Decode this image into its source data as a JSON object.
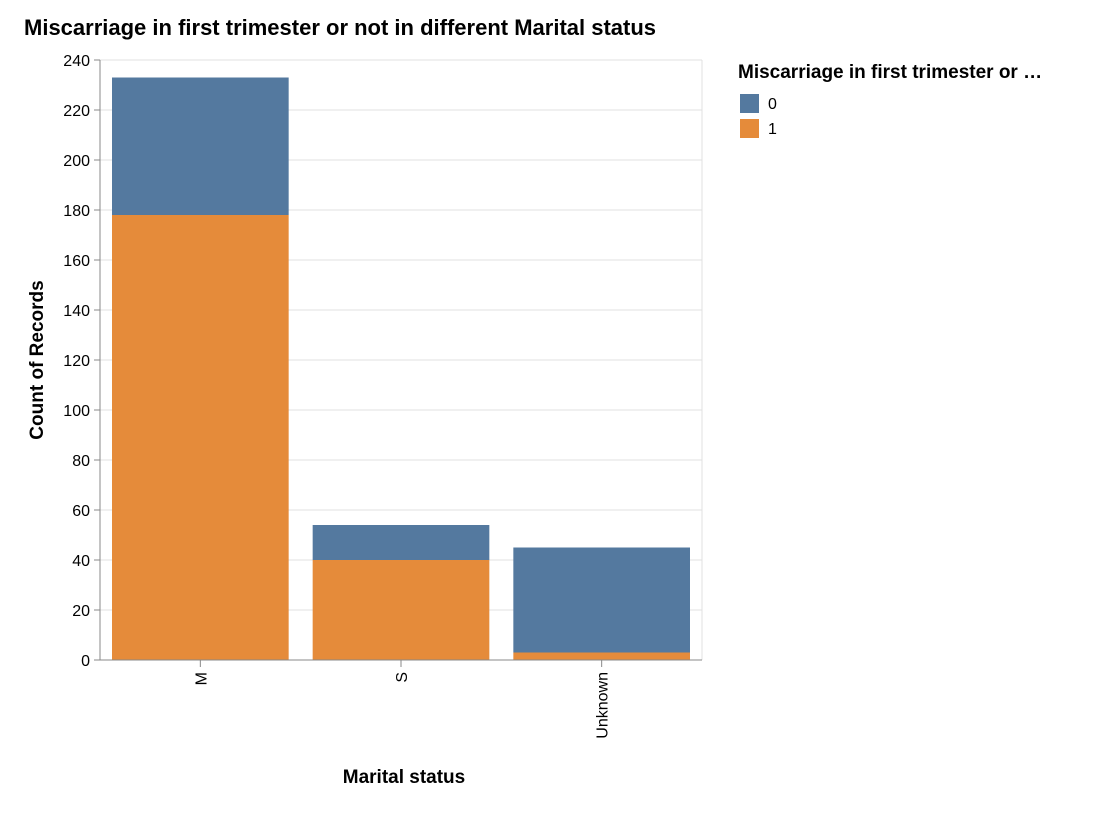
{
  "chart_data": {
    "type": "bar",
    "stacked": true,
    "title": "Miscarriage in first trimester or not in different Marital status",
    "xlabel": "Marital status",
    "ylabel": "Count of Records",
    "categories": [
      "M",
      "S",
      "Unknown"
    ],
    "series": [
      {
        "name": "0",
        "values": [
          55,
          14,
          42
        ],
        "color": "#54799f"
      },
      {
        "name": "1",
        "values": [
          178,
          40,
          3
        ],
        "color": "#e58b3a"
      }
    ],
    "stack_order": [
      "1",
      "0"
    ],
    "ylim": [
      0,
      240
    ],
    "yticks": [
      0,
      20,
      40,
      60,
      80,
      100,
      120,
      140,
      160,
      180,
      200,
      220,
      240
    ],
    "grid": true,
    "legend": {
      "title": "Miscarriage in first trimester or …",
      "placement": "right",
      "entries": [
        {
          "label": "0",
          "color": "#54799f"
        },
        {
          "label": "1",
          "color": "#e58b3a"
        }
      ]
    }
  }
}
